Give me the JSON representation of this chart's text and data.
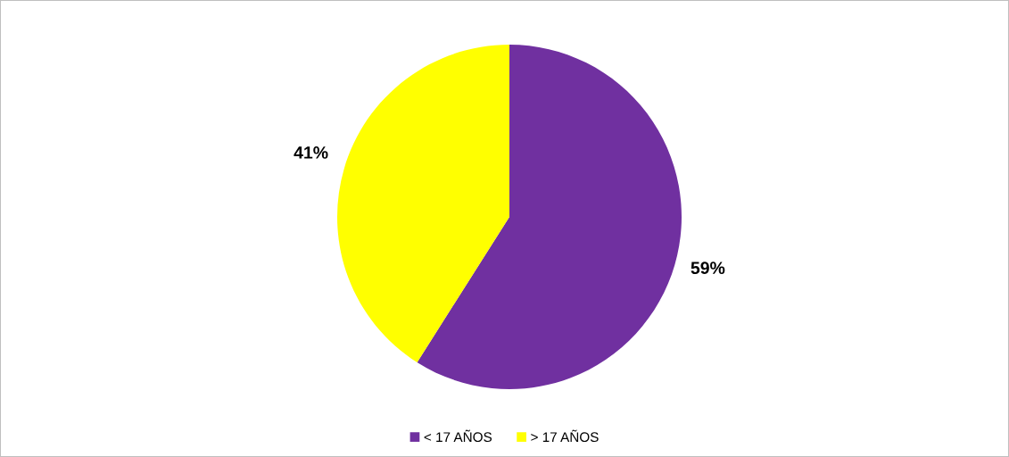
{
  "chart_data": {
    "type": "pie",
    "categories": [
      "< 17 AÑOS",
      "> 17 AÑOS"
    ],
    "values": [
      59,
      41
    ],
    "value_labels": [
      "59%",
      "41%"
    ],
    "colors": [
      "#7030a0",
      "#ffff00"
    ],
    "legend": "bottom"
  }
}
